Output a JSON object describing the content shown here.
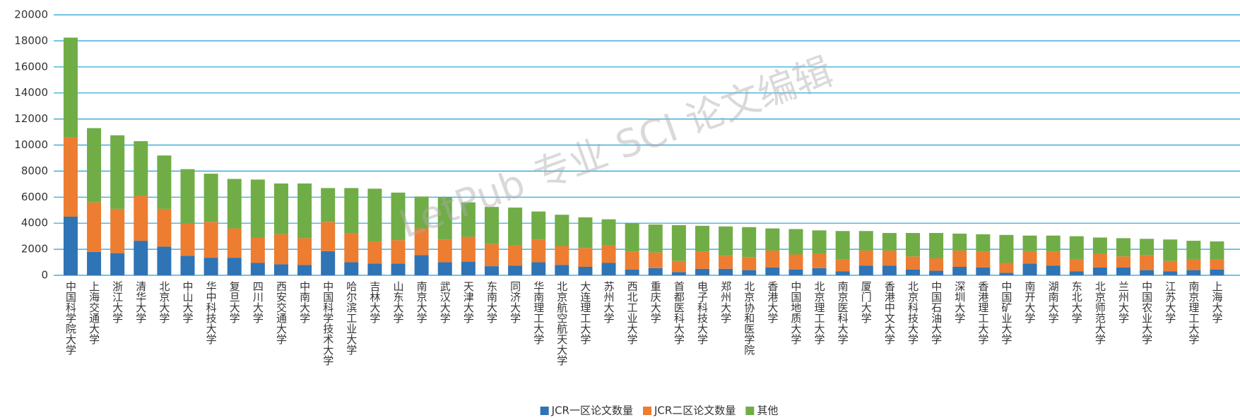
{
  "chart_data": {
    "type": "stacked_bar",
    "watermark": "LetPub 专业 SCI 论文编辑",
    "categories": [
      "中国科学院大学",
      "上海交通大学",
      "浙江大学",
      "清华大学",
      "北京大学",
      "中山大学",
      "华中科技大学",
      "复旦大学",
      "四川大学",
      "西安交通大学",
      "中南大学",
      "中国科学技术大学",
      "哈尔滨工业大学",
      "吉林大学",
      "山东大学",
      "南京大学",
      "武汉大学",
      "天津大学",
      "东南大学",
      "同济大学",
      "华南理工大学",
      "北京航空航天大学",
      "大连理工大学",
      "苏州大学",
      "西北工业大学",
      "重庆大学",
      "首都医科大学",
      "电子科技大学",
      "郑州大学",
      "北京协和医学院",
      "香港大学",
      "中国地质大学",
      "北京理工大学",
      "南京医科大学",
      "厦门大学",
      "香港中文大学",
      "北京科技大学",
      "中国石油大学",
      "深圳大学",
      "香港理工大学",
      "中国矿业大学",
      "南开大学",
      "湖南大学",
      "东北大学",
      "北京师范大学",
      "兰州大学",
      "中国农业大学",
      "江苏大学",
      "南京理工大学",
      "上海大学"
    ],
    "series": [
      {
        "name": "JCR一区论文数量",
        "color": "#2f74b5",
        "values": [
          4500,
          1800,
          1700,
          2650,
          2200,
          1500,
          1350,
          1350,
          950,
          850,
          800,
          1850,
          1000,
          900,
          900,
          1550,
          1000,
          1050,
          700,
          750,
          1000,
          800,
          650,
          950,
          450,
          550,
          250,
          500,
          500,
          400,
          600,
          450,
          550,
          300,
          750,
          750,
          450,
          350,
          650,
          600,
          200,
          900,
          750,
          300,
          600,
          600,
          400,
          300,
          400,
          450
        ]
      },
      {
        "name": "JCR二区论文数量",
        "color": "#ed7d31",
        "values": [
          6100,
          3800,
          3400,
          3450,
          2900,
          2500,
          2750,
          2250,
          1950,
          2300,
          2050,
          2250,
          2250,
          1700,
          1800,
          2050,
          1750,
          1900,
          1700,
          1550,
          1750,
          1450,
          1450,
          1350,
          1350,
          1200,
          850,
          1300,
          1000,
          1000,
          1300,
          1150,
          1100,
          900,
          1150,
          1150,
          1000,
          950,
          1250,
          1200,
          750,
          950,
          1050,
          950,
          1050,
          850,
          1150,
          800,
          850,
          750
        ]
      },
      {
        "name": "其他",
        "color": "#70ad47",
        "values": [
          7650,
          5700,
          5650,
          4200,
          4100,
          4150,
          3700,
          3800,
          4450,
          3900,
          4200,
          2600,
          3450,
          4050,
          3650,
          2450,
          3250,
          2650,
          2850,
          2900,
          2150,
          2400,
          2350,
          2000,
          2200,
          2150,
          2750,
          2000,
          2250,
          2300,
          1700,
          1950,
          1800,
          2200,
          1500,
          1350,
          1800,
          1950,
          1300,
          1350,
          2150,
          1200,
          1250,
          1750,
          1250,
          1400,
          1250,
          1650,
          1400,
          1400
        ]
      }
    ],
    "ylim": [
      0,
      20000
    ],
    "yticks": [
      0,
      2000,
      4000,
      6000,
      8000,
      10000,
      12000,
      14000,
      16000,
      18000,
      20000
    ],
    "grid": true,
    "grid_color": "#1fa0d4",
    "legend": "bottom"
  }
}
